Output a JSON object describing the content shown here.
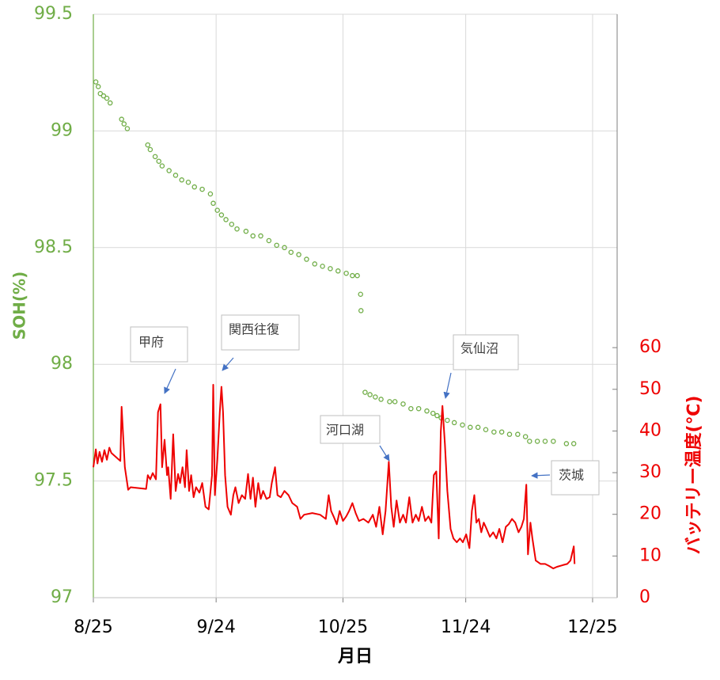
{
  "chart_data": {
    "type": "combo",
    "xlabel": "月日",
    "ylabel": "SOH(%)",
    "y2label": "バッテリー温度(℃)",
    "xlim": [
      0,
      128
    ],
    "xticks": [
      {
        "value": 0,
        "label": "8/25"
      },
      {
        "value": 30,
        "label": "9/24"
      },
      {
        "value": 61,
        "label": "10/25"
      },
      {
        "value": 91,
        "label": "11/24"
      },
      {
        "value": 122,
        "label": "12/25"
      }
    ],
    "ylim": [
      97,
      99.5
    ],
    "yticks": [
      97,
      97.5,
      98,
      98.5,
      99,
      99.5
    ],
    "y2lim": [
      0,
      140
    ],
    "y2ticks": [
      0,
      10,
      20,
      30,
      40,
      50,
      60
    ],
    "grid": true,
    "annotations": [
      "甲府",
      "関西往復",
      "河口湖",
      "気仙沼",
      "茨城"
    ],
    "series": [
      {
        "type": "scatter",
        "axis": "y",
        "color": "#70ad47",
        "x": [
          0.6,
          1.2,
          1.7,
          2.5,
          3.3,
          4.1,
          6.9,
          7.5,
          8.3,
          13.3,
          13.9,
          15.1,
          16.0,
          16.8,
          18.5,
          20.1,
          21.6,
          23.2,
          24.7,
          26.6,
          28.6,
          29.3,
          30.3,
          31.3,
          32.4,
          33.8,
          35.1,
          37.3,
          39.0,
          40.9,
          42.9,
          44.8,
          46.7,
          48.3,
          50.2,
          52.1,
          54.1,
          56.0,
          57.9,
          59.8,
          61.8,
          63.3,
          64.5,
          65.3,
          65.4,
          66.4,
          67.6,
          68.9,
          70.3,
          72.4,
          73.7,
          75.7,
          77.6,
          79.5,
          81.5,
          83.0,
          84.0,
          85.0,
          86.5,
          88.2,
          90.2,
          92.1,
          94.0,
          95.9,
          97.9,
          99.8,
          101.7,
          103.7,
          105.6,
          106.6,
          108.5,
          110.4,
          112.4,
          115.6,
          117.4
        ],
        "values": [
          99.21,
          99.19,
          99.16,
          99.15,
          99.14,
          99.12,
          99.05,
          99.03,
          99.01,
          98.94,
          98.92,
          98.89,
          98.87,
          98.85,
          98.83,
          98.81,
          98.79,
          98.78,
          98.76,
          98.75,
          98.73,
          98.69,
          98.66,
          98.64,
          98.62,
          98.6,
          98.58,
          98.57,
          98.55,
          98.55,
          98.53,
          98.51,
          98.5,
          98.48,
          98.47,
          98.45,
          98.43,
          98.42,
          98.41,
          98.4,
          98.39,
          98.38,
          98.38,
          98.3,
          98.23,
          97.88,
          97.87,
          97.86,
          97.85,
          97.84,
          97.84,
          97.83,
          97.81,
          97.81,
          97.8,
          97.79,
          97.78,
          97.77,
          97.76,
          97.75,
          97.74,
          97.73,
          97.73,
          97.72,
          97.71,
          97.71,
          97.7,
          97.7,
          97.69,
          97.67,
          97.67,
          97.67,
          97.67,
          97.66,
          97.66
        ]
      },
      {
        "type": "line",
        "axis": "y2",
        "color": "#ee0000",
        "x": [
          0,
          0.6,
          1.0,
          1.5,
          2.1,
          2.7,
          3.3,
          3.9,
          4.4,
          5.8,
          6.6,
          6.9,
          7.7,
          8.5,
          9.1,
          12.9,
          13.3,
          13.9,
          14.5,
          15.3,
          15.8,
          16.4,
          16.8,
          17.4,
          18.0,
          18.3,
          18.9,
          19.5,
          20.1,
          20.7,
          21.2,
          21.8,
          22.4,
          22.8,
          23.4,
          23.9,
          24.5,
          25.1,
          25.9,
          26.6,
          27.4,
          28.2,
          29.0,
          29.3,
          29.7,
          30.3,
          30.9,
          31.3,
          31.7,
          32.2,
          32.8,
          33.6,
          34.2,
          34.7,
          35.5,
          36.3,
          37.1,
          37.8,
          38.4,
          39.0,
          39.6,
          40.3,
          40.9,
          41.5,
          42.3,
          43.1,
          43.6,
          44.4,
          45.0,
          45.8,
          46.7,
          47.7,
          48.6,
          49.8,
          50.6,
          51.5,
          53.5,
          55.4,
          56.8,
          57.5,
          58.1,
          58.7,
          59.5,
          60.2,
          61.0,
          61.8,
          62.5,
          63.3,
          64.1,
          64.9,
          66.0,
          67.2,
          68.3,
          69.1,
          69.9,
          70.7,
          71.4,
          72.2,
          72.8,
          73.4,
          74.1,
          74.9,
          75.7,
          76.4,
          77.2,
          78.0,
          78.8,
          79.5,
          80.3,
          81.1,
          81.9,
          82.6,
          83.2,
          83.8,
          84.4,
          84.9,
          85.3,
          85.9,
          86.5,
          87.3,
          88.0,
          88.8,
          89.6,
          90.3,
          91.1,
          91.9,
          92.5,
          93.1,
          93.6,
          94.2,
          94.8,
          95.4,
          96.1,
          96.9,
          97.7,
          98.5,
          99.2,
          100.0,
          100.8,
          101.5,
          102.3,
          103.1,
          103.9,
          104.6,
          105.2,
          105.8,
          106.2,
          106.8,
          107.3,
          108.1,
          109.3,
          110.4,
          111.4,
          112.4,
          113.3,
          114.7,
          115.8,
          116.6,
          117.4,
          117.6
        ],
        "values": [
          31.3,
          35.6,
          32.2,
          35,
          32.6,
          35.4,
          33.1,
          36,
          34.7,
          33.5,
          32.8,
          45.8,
          31.3,
          25.9,
          26.5,
          26.1,
          29.4,
          28.4,
          29.9,
          28.4,
          44.5,
          46.4,
          31.3,
          37.9,
          29.4,
          31.3,
          23.7,
          39.2,
          25.6,
          29.7,
          27.5,
          31.3,
          26.5,
          35.4,
          25.6,
          29.4,
          24.1,
          26.5,
          25.2,
          27.5,
          21.8,
          21.2,
          29.4,
          51.1,
          24.6,
          33.1,
          44.5,
          50.6,
          44.5,
          29.4,
          21.8,
          19.9,
          24.6,
          26.5,
          22.7,
          24.6,
          23.7,
          29.7,
          23.7,
          28.8,
          21.8,
          27.5,
          23.7,
          25.6,
          23.7,
          24.1,
          27.5,
          31.3,
          24.6,
          24.1,
          25.6,
          24.6,
          22.7,
          21.8,
          18.9,
          19.9,
          20.3,
          19.9,
          18.9,
          24.6,
          20.8,
          19.5,
          17.6,
          20.8,
          18.4,
          19.5,
          20.8,
          22.7,
          20.3,
          18.4,
          18.9,
          18,
          19.9,
          17,
          21.8,
          15.2,
          20.8,
          32.6,
          21.8,
          17,
          23.3,
          18,
          19.9,
          18,
          24.1,
          18,
          19.9,
          18.4,
          21.8,
          18.4,
          19.5,
          18,
          29.4,
          30.3,
          14.2,
          39.8,
          46,
          36.9,
          25.6,
          16.5,
          14.2,
          13.3,
          14.2,
          13.3,
          15.2,
          11.9,
          20.8,
          24.6,
          18,
          18.9,
          15.7,
          18,
          16.5,
          14.6,
          15.7,
          14.2,
          16.5,
          13.3,
          17,
          17.6,
          18.9,
          18,
          15.7,
          17,
          18.9,
          27.1,
          10.4,
          18,
          14.2,
          8.9,
          8.1,
          8.1,
          7.6,
          7,
          7.4,
          7.8,
          8.1,
          8.9,
          12.3,
          8.1
        ]
      }
    ]
  }
}
